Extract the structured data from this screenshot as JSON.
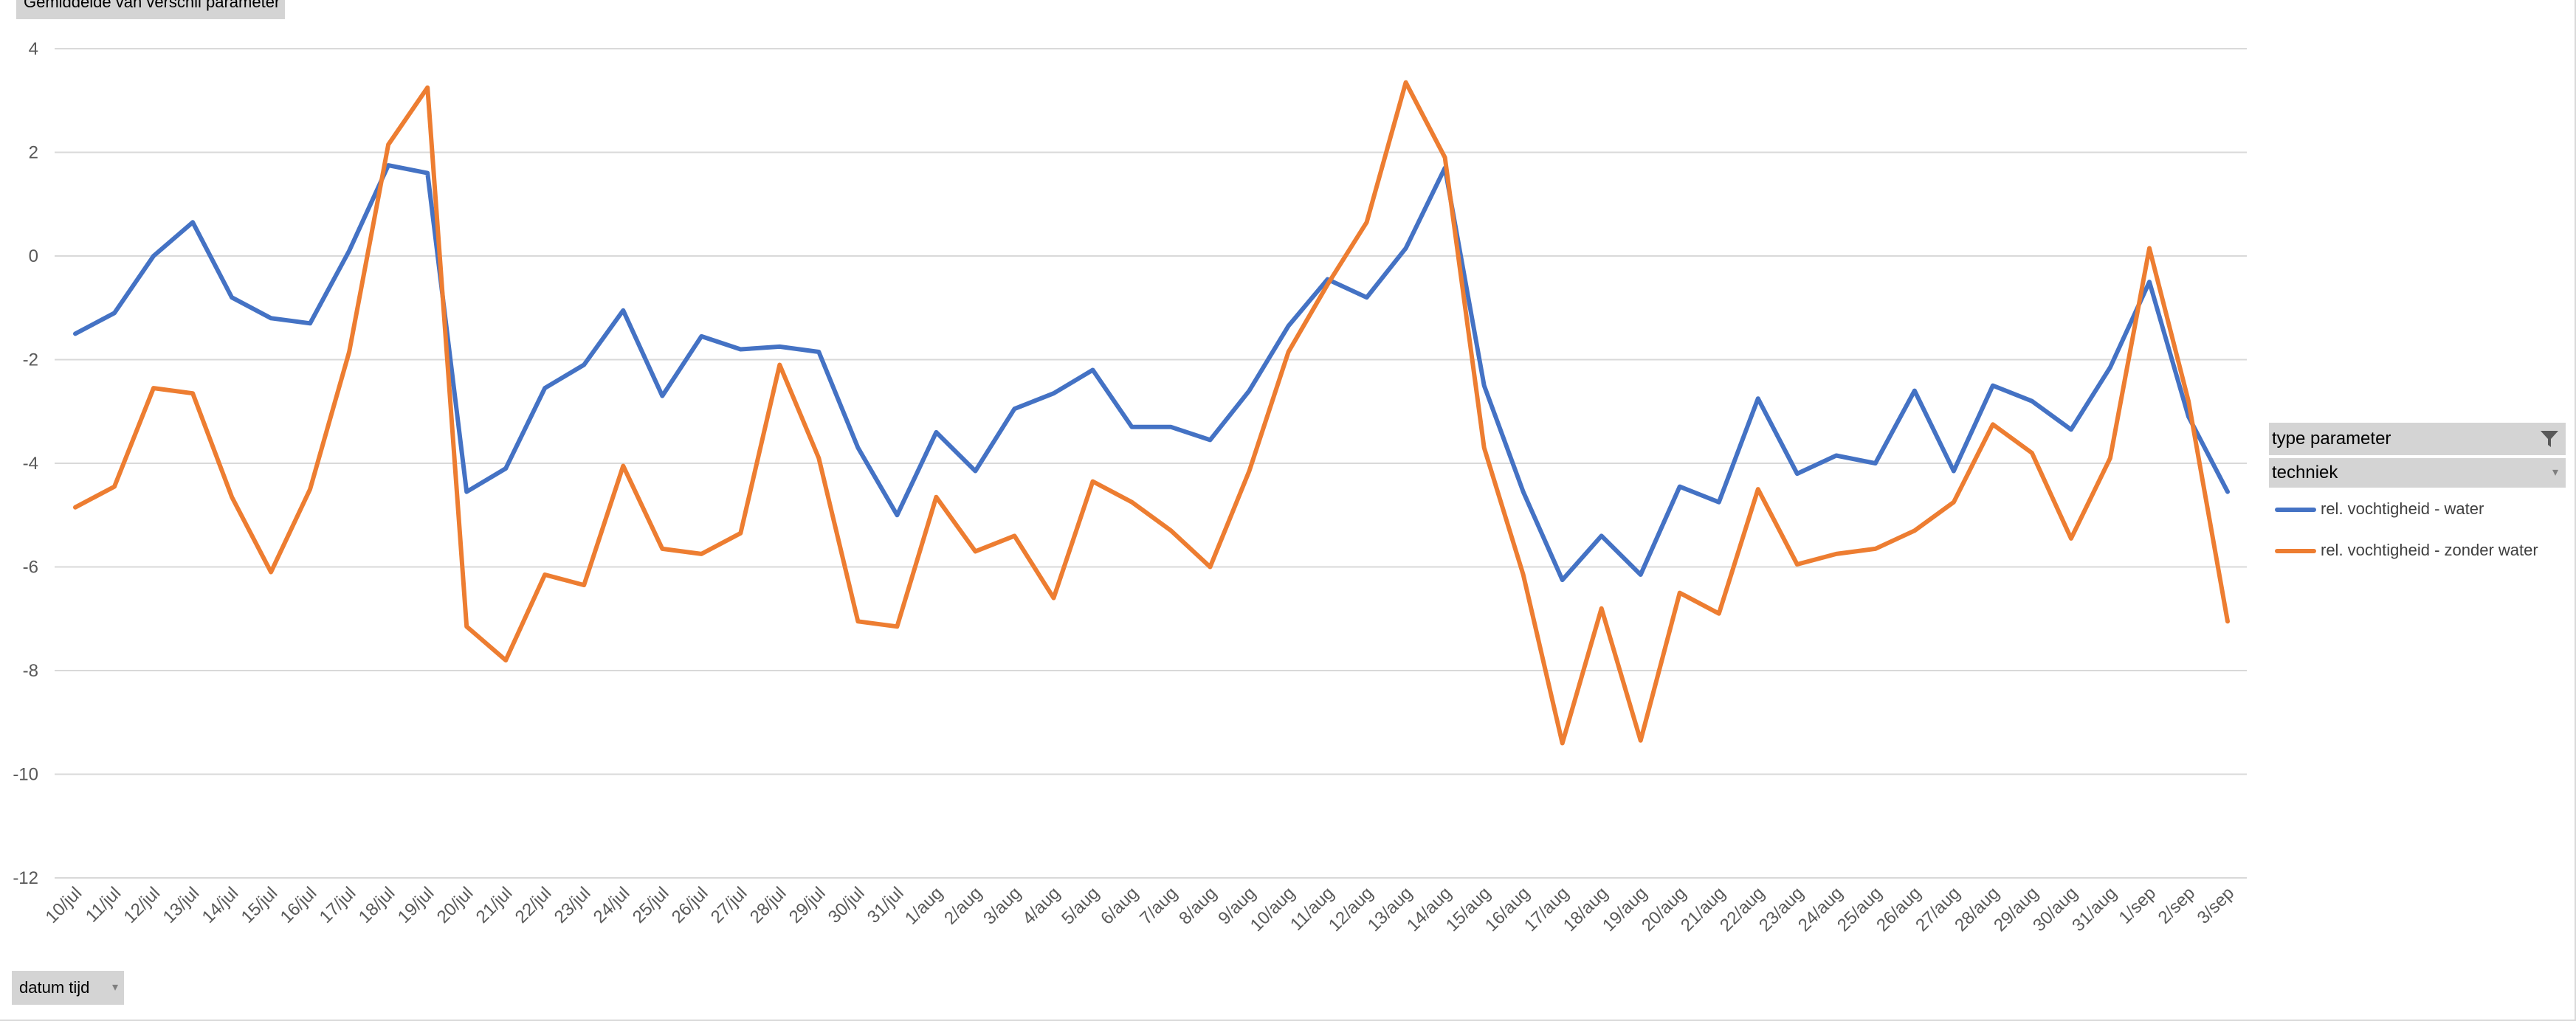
{
  "value_field_button": {
    "label": "Gemiddelde van verschil parameter"
  },
  "axis_field_button": {
    "label": "datum tijd",
    "dropdown_glyph": "▾"
  },
  "legend": {
    "header": "type parameter",
    "header_icon": "filter-icon",
    "subheader": "techniek",
    "subheader_glyph": "▾",
    "placement": "right"
  },
  "colors": {
    "water": "#4472c4",
    "zonder_water": "#ed7d31",
    "gridline": "#d9d9d9",
    "axis_text": "#595959"
  },
  "chart_data": {
    "type": "line",
    "grid": true,
    "ylim": [
      -12,
      4
    ],
    "yticks": [
      4,
      2,
      0,
      -2,
      -4,
      -6,
      -8,
      -10,
      -12
    ],
    "categories": [
      "10/jul",
      "11/jul",
      "12/jul",
      "13/jul",
      "14/jul",
      "15/jul",
      "16/jul",
      "17/jul",
      "18/jul",
      "19/jul",
      "20/jul",
      "21/jul",
      "22/jul",
      "23/jul",
      "24/jul",
      "25/jul",
      "26/jul",
      "27/jul",
      "28/jul",
      "29/jul",
      "30/jul",
      "31/jul",
      "1/aug",
      "2/aug",
      "3/aug",
      "4/aug",
      "5/aug",
      "6/aug",
      "7/aug",
      "8/aug",
      "9/aug",
      "10/aug",
      "11/aug",
      "12/aug",
      "13/aug",
      "14/aug",
      "15/aug",
      "16/aug",
      "17/aug",
      "18/aug",
      "19/aug",
      "20/aug",
      "21/aug",
      "22/aug",
      "23/aug",
      "24/aug",
      "25/aug",
      "26/aug",
      "27/aug",
      "28/aug",
      "29/aug",
      "30/aug",
      "31/aug",
      "1/sep",
      "2/sep",
      "3/sep"
    ],
    "series": [
      {
        "name": "rel. vochtigheid - water",
        "color": "#4472c4",
        "values": [
          -1.5,
          -1.1,
          0.0,
          0.65,
          -0.8,
          -1.2,
          -1.3,
          0.1,
          1.75,
          1.6,
          -4.55,
          -4.1,
          -2.55,
          -2.1,
          -1.05,
          -2.7,
          -1.55,
          -1.8,
          -1.75,
          -1.85,
          -3.7,
          -5.0,
          -3.4,
          -4.15,
          -2.95,
          -2.65,
          -2.2,
          -3.3,
          -3.3,
          -3.55,
          -2.6,
          -1.35,
          -0.45,
          -0.8,
          0.15,
          1.7,
          -2.5,
          -4.55,
          -6.25,
          -5.4,
          -6.15,
          -4.45,
          -4.75,
          -2.75,
          -4.2,
          -3.85,
          -4.0,
          -2.6,
          -4.15,
          -2.5,
          -2.8,
          -3.35,
          -2.15,
          -0.5,
          -3.1,
          -4.55
        ]
      },
      {
        "name": "rel. vochtigheid - zonder water",
        "color": "#ed7d31",
        "values": [
          -4.85,
          -4.45,
          -2.55,
          -2.65,
          -4.65,
          -6.1,
          -4.5,
          -1.85,
          2.15,
          3.25,
          -7.15,
          -7.8,
          -6.15,
          -6.35,
          -4.05,
          -5.65,
          -5.75,
          -5.35,
          -2.1,
          -3.9,
          -7.05,
          -7.15,
          -4.65,
          -5.7,
          -5.4,
          -6.6,
          -4.35,
          -4.75,
          -5.3,
          -6.0,
          -4.15,
          -1.85,
          -0.55,
          0.65,
          3.35,
          1.9,
          -3.7,
          -6.15,
          -9.4,
          -6.8,
          -9.35,
          -6.5,
          -6.9,
          -4.5,
          -5.95,
          -5.75,
          -5.65,
          -5.3,
          -4.75,
          -3.25,
          -3.8,
          -5.45,
          -3.9,
          0.15,
          -2.8,
          -7.05
        ]
      }
    ]
  }
}
